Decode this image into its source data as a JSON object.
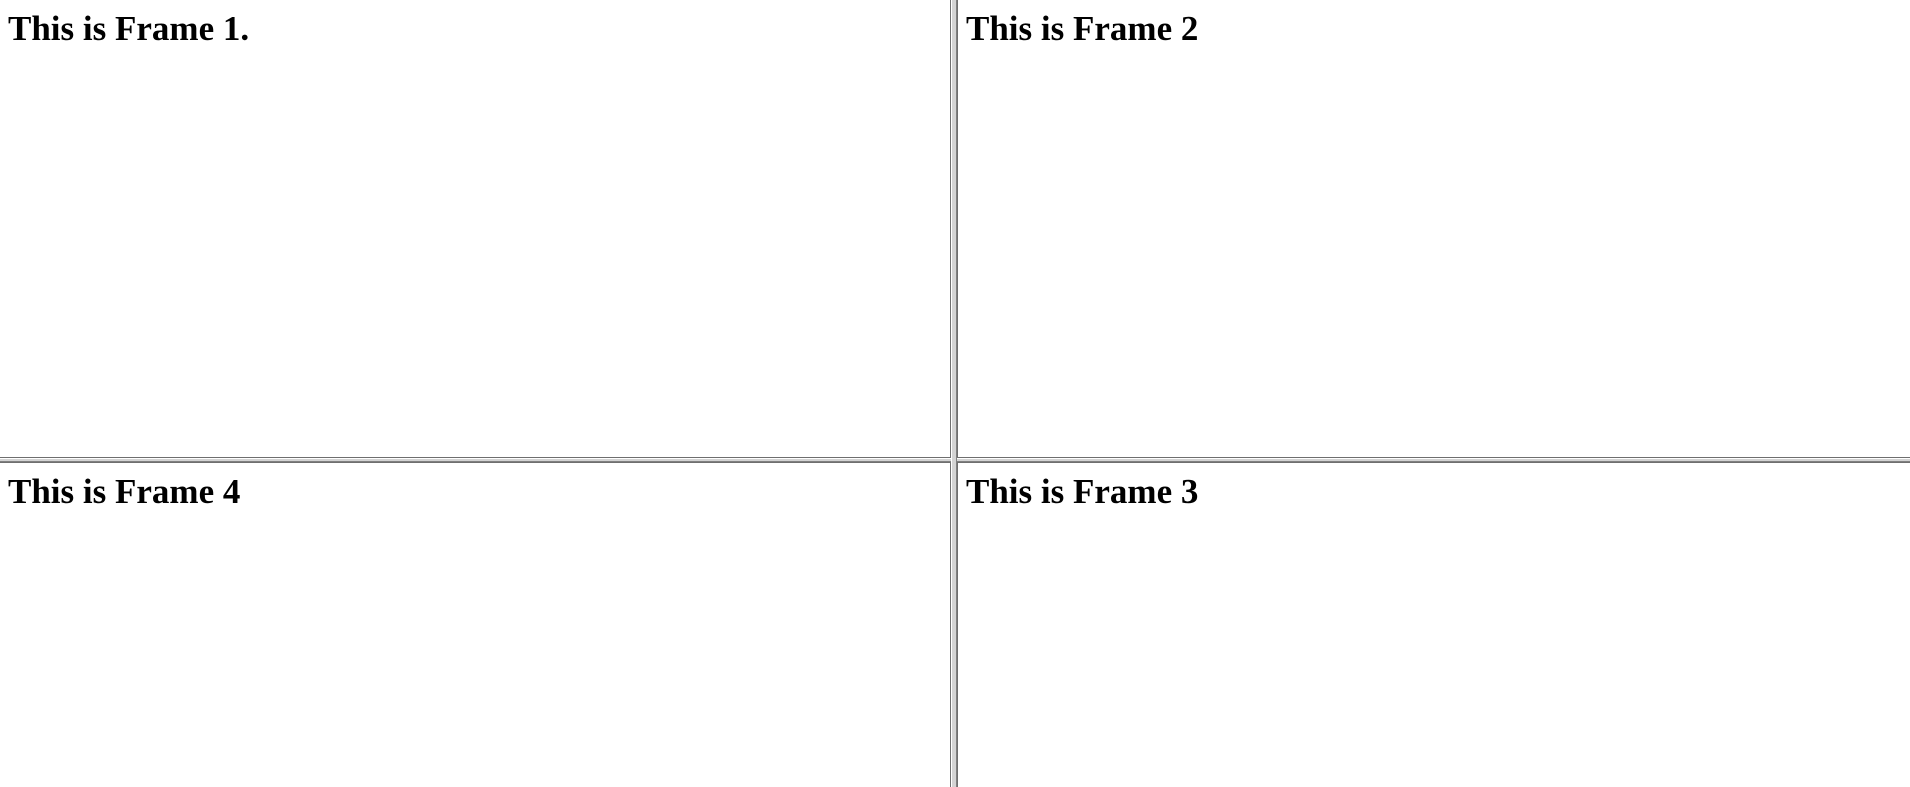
{
  "frames": {
    "frame1": {
      "heading": "This is Frame 1."
    },
    "frame2": {
      "heading": "This is Frame 2"
    },
    "frame3": {
      "heading": "This is Frame 3"
    },
    "frame4": {
      "heading": "This is Frame 4"
    }
  },
  "colors": {
    "background": "#ffffff",
    "text": "#000000",
    "frame_border": "#6f6f6f",
    "splitter": "#d4d4d4"
  }
}
